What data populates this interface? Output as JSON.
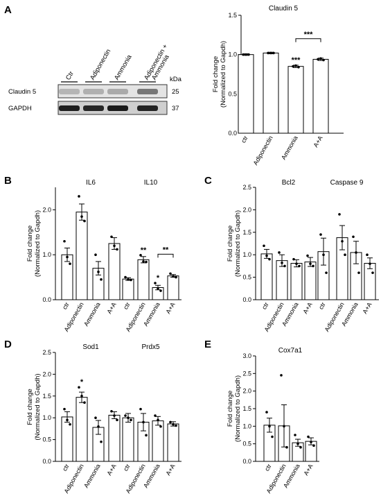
{
  "panel_letters": {
    "A": "A",
    "B": "B",
    "C": "C",
    "D": "D",
    "E": "E"
  },
  "western_blot": {
    "lanes": [
      "Ctr",
      "Adiponectin",
      "Ammonia",
      "Adiponectin +\nAmmonia"
    ],
    "kda_label": "kDa",
    "rows": [
      {
        "name": "Claudin 5",
        "kda": "25"
      },
      {
        "name": "GAPDH",
        "kda": "37"
      }
    ]
  },
  "chart_data": [
    {
      "id": "A",
      "type": "bar",
      "title": "Claudin 5",
      "ylabel": [
        "Fold change",
        "(Normalized to Gapdh)"
      ],
      "ylim": [
        0,
        1.5
      ],
      "yticks": [
        "0.0",
        "0.5",
        "1.0",
        "1.5"
      ],
      "categories": [
        "ctr",
        "Adiponectin",
        "Ammonia",
        "A+A"
      ],
      "values": [
        1.0,
        1.02,
        0.85,
        0.94
      ],
      "errors": [
        0.01,
        0.01,
        0.015,
        0.015
      ],
      "points": [
        [
          1.0,
          1.0,
          1.0
        ],
        [
          1.02,
          1.02,
          1.02
        ],
        [
          0.85,
          0.86,
          0.84
        ],
        [
          0.94,
          0.95,
          0.93
        ]
      ],
      "significance": [
        "",
        "",
        "***",
        ""
      ],
      "brackets": [
        {
          "from": 2,
          "to": 3,
          "label": "***"
        }
      ]
    },
    {
      "id": "B",
      "type": "bar",
      "ylabel": [
        "Fold change",
        "(Normalized to Gapdh)"
      ],
      "ylim": [
        0,
        2.5
      ],
      "yticks": [
        "0.0",
        "1.0",
        "2.0"
      ],
      "groups": [
        {
          "title": "IL6",
          "categories": [
            "ctr",
            "Adiponectin",
            "Ammonia",
            "A+A"
          ],
          "values": [
            1.0,
            1.95,
            0.7,
            1.25
          ],
          "errors": [
            0.15,
            0.18,
            0.15,
            0.13
          ],
          "points": [
            [
              1.3,
              0.95,
              0.8
            ],
            [
              2.3,
              1.85,
              1.75
            ],
            [
              1.0,
              0.62,
              0.45
            ],
            [
              1.4,
              1.2,
              1.12
            ]
          ],
          "significance": [
            "",
            "",
            "",
            ""
          ],
          "brackets": []
        },
        {
          "title": "IL10",
          "categories": [
            "ctr",
            "Adiponectin",
            "Ammonia",
            "A+A"
          ],
          "values": [
            0.46,
            0.89,
            0.27,
            0.53
          ],
          "errors": [
            0.03,
            0.07,
            0.05,
            0.03
          ],
          "points": [
            [
              0.5,
              0.45,
              0.44
            ],
            [
              0.99,
              0.85,
              0.84
            ],
            [
              0.37,
              0.25,
              0.2
            ],
            [
              0.58,
              0.52,
              0.5
            ]
          ],
          "significance": [
            "",
            "**",
            "*",
            ""
          ],
          "brackets": [
            {
              "from": 2,
              "to": 3,
              "label": "**"
            }
          ]
        }
      ]
    },
    {
      "id": "C",
      "type": "bar",
      "ylabel": [
        "Fold change",
        "(Normalized to Gapdh)"
      ],
      "ylim": [
        0,
        2.5
      ],
      "yticks": [
        "0.0",
        "0.5",
        "1.0",
        "1.5",
        "2.0",
        "2.5"
      ],
      "groups": [
        {
          "title": "Bcl2",
          "categories": [
            "ctr",
            "Adiponectin",
            "Ammonia",
            "A+A"
          ],
          "values": [
            1.02,
            0.87,
            0.81,
            0.84
          ],
          "errors": [
            0.1,
            0.13,
            0.08,
            0.1
          ],
          "points": [
            [
              1.2,
              0.98,
              0.9
            ],
            [
              1.05,
              0.82,
              0.75
            ],
            [
              0.9,
              0.8,
              0.75
            ],
            [
              0.98,
              0.8,
              0.75
            ]
          ],
          "significance": [
            "",
            "",
            "",
            ""
          ],
          "brackets": []
        },
        {
          "title": "Caspase 9",
          "categories": [
            "ctr",
            "Adiponectin",
            "Ammonia",
            "A+A"
          ],
          "values": [
            1.07,
            1.38,
            1.05,
            0.81
          ],
          "errors": [
            0.3,
            0.27,
            0.25,
            0.12
          ],
          "points": [
            [
              1.45,
              1.0,
              0.6
            ],
            [
              1.9,
              1.3,
              1.0
            ],
            [
              1.4,
              1.05,
              0.6
            ],
            [
              1.0,
              0.8,
              0.6
            ]
          ],
          "significance": [
            "",
            "",
            "",
            ""
          ],
          "brackets": []
        }
      ]
    },
    {
      "id": "D",
      "type": "bar",
      "ylabel": [
        "Fold change",
        "(Normalized to Gapdh)"
      ],
      "ylim": [
        0,
        2.5
      ],
      "yticks": [
        "0.0",
        "0.5",
        "1.0",
        "1.5",
        "2.0",
        "2.5"
      ],
      "groups": [
        {
          "title": "Sod1",
          "categories": [
            "ctr",
            "Adiponectin",
            "Ammonia",
            "A+A"
          ],
          "values": [
            1.02,
            1.47,
            0.78,
            1.06
          ],
          "errors": [
            0.12,
            0.12,
            0.16,
            0.08
          ],
          "points": [
            [
              1.2,
              0.95,
              0.85
            ],
            [
              1.7,
              1.5,
              1.35
            ],
            [
              1.0,
              0.8,
              0.45
            ],
            [
              1.15,
              1.05,
              0.95
            ]
          ],
          "significance": [
            "",
            "*",
            "",
            ""
          ],
          "brackets": []
        },
        {
          "title": "Prdx5",
          "categories": [
            "ctr",
            "Adiponectin",
            "Ammonia",
            "A+A"
          ],
          "values": [
            1.0,
            0.9,
            0.93,
            0.86
          ],
          "errors": [
            0.1,
            0.2,
            0.1,
            0.05
          ],
          "points": [
            [
              1.05,
              1.0,
              0.95
            ],
            [
              1.2,
              0.9,
              0.6
            ],
            [
              1.05,
              0.95,
              0.8
            ],
            [
              0.9,
              0.85,
              0.82
            ]
          ],
          "significance": [
            "",
            "",
            "",
            ""
          ],
          "brackets": []
        }
      ]
    },
    {
      "id": "E",
      "type": "bar",
      "title": "Cox7a1",
      "ylabel": [
        "Fold change",
        "(Normalized to Gapdh)"
      ],
      "ylim": [
        0,
        3.0
      ],
      "yticks": [
        "0.0",
        "0.5",
        "1.0",
        "1.5",
        "2.0",
        "2.5",
        "3.0"
      ],
      "categories": [
        "ctr",
        "Adiponectin",
        "Ammonia",
        "A+A"
      ],
      "values": [
        1.03,
        1.01,
        0.53,
        0.57
      ],
      "errors": [
        0.2,
        0.6,
        0.1,
        0.1
      ],
      "points": [
        [
          1.4,
          1.0,
          0.7
        ],
        [
          2.45,
          1.0,
          0.4
        ],
        [
          0.75,
          0.5,
          0.4
        ],
        [
          0.7,
          0.55,
          0.45
        ]
      ],
      "significance": [
        "",
        "",
        "",
        ""
      ],
      "brackets": []
    }
  ]
}
